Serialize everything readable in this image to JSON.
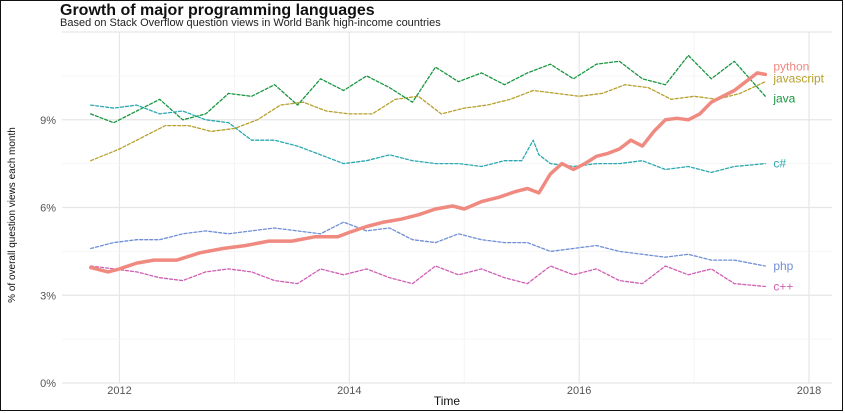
{
  "chart_data": {
    "type": "line",
    "title": "Growth of major programming languages",
    "subtitle": "Based on Stack Overflow question views in World Bank high-income countries",
    "xlabel": "Time",
    "ylabel": "% of overall question views each month",
    "xlim": [
      2011.5,
      2018.2
    ],
    "ylim": [
      0,
      12
    ],
    "x_ticks": [
      {
        "value": 2012,
        "label": "2012"
      },
      {
        "value": 2014,
        "label": "2014"
      },
      {
        "value": 2016,
        "label": "2016"
      },
      {
        "value": 2018,
        "label": "2018"
      }
    ],
    "y_ticks": [
      {
        "value": 0,
        "label": "0%"
      },
      {
        "value": 3,
        "label": "3%"
      },
      {
        "value": 6,
        "label": "6%"
      },
      {
        "value": 9,
        "label": "9%"
      }
    ],
    "grid": true,
    "legend": "direct labels at line ends",
    "series": [
      {
        "name": "python",
        "color": "#f08a80",
        "width": 3.5,
        "dash": "",
        "x": [
          2011.75,
          2011.9,
          2012.0,
          2012.15,
          2012.3,
          2012.5,
          2012.7,
          2012.9,
          2013.1,
          2013.3,
          2013.5,
          2013.7,
          2013.9,
          2014.0,
          2014.15,
          2014.3,
          2014.45,
          2014.6,
          2014.75,
          2014.9,
          2015.0,
          2015.15,
          2015.3,
          2015.45,
          2015.55,
          2015.65,
          2015.75,
          2015.85,
          2015.95,
          2016.05,
          2016.15,
          2016.25,
          2016.35,
          2016.45,
          2016.55,
          2016.65,
          2016.75,
          2016.85,
          2016.95,
          2017.05,
          2017.15,
          2017.25,
          2017.35,
          2017.45,
          2017.55,
          2017.62
        ],
        "y": [
          3.95,
          3.8,
          3.9,
          4.1,
          4.2,
          4.2,
          4.45,
          4.6,
          4.7,
          4.85,
          4.85,
          5.0,
          5.0,
          5.15,
          5.35,
          5.5,
          5.6,
          5.75,
          5.95,
          6.05,
          5.95,
          6.2,
          6.35,
          6.55,
          6.65,
          6.5,
          7.15,
          7.5,
          7.3,
          7.5,
          7.75,
          7.85,
          8.0,
          8.3,
          8.1,
          8.6,
          9.0,
          9.05,
          9.0,
          9.2,
          9.6,
          9.8,
          10.0,
          10.3,
          10.6,
          10.55
        ]
      },
      {
        "name": "javascript",
        "color": "#b7a02e",
        "width": 1.3,
        "dash": "3,2",
        "x": [
          2011.75,
          2012.0,
          2012.2,
          2012.4,
          2012.6,
          2012.8,
          2013.0,
          2013.2,
          2013.4,
          2013.6,
          2013.8,
          2014.0,
          2014.2,
          2014.4,
          2014.6,
          2014.8,
          2015.0,
          2015.2,
          2015.4,
          2015.6,
          2015.8,
          2016.0,
          2016.2,
          2016.4,
          2016.6,
          2016.8,
          2017.0,
          2017.2,
          2017.4,
          2017.62
        ],
        "y": [
          7.6,
          8.0,
          8.4,
          8.8,
          8.8,
          8.6,
          8.7,
          9.0,
          9.5,
          9.6,
          9.3,
          9.2,
          9.2,
          9.7,
          9.8,
          9.2,
          9.4,
          9.5,
          9.7,
          10.0,
          9.9,
          9.8,
          9.9,
          10.2,
          10.1,
          9.7,
          9.8,
          9.7,
          9.9,
          10.3
        ]
      },
      {
        "name": "java",
        "color": "#1a9641",
        "width": 1.3,
        "dash": "3,2",
        "x": [
          2011.75,
          2011.95,
          2012.15,
          2012.35,
          2012.55,
          2012.75,
          2012.95,
          2013.15,
          2013.35,
          2013.55,
          2013.75,
          2013.95,
          2014.15,
          2014.35,
          2014.55,
          2014.75,
          2014.95,
          2015.15,
          2015.35,
          2015.55,
          2015.75,
          2015.95,
          2016.15,
          2016.35,
          2016.55,
          2016.75,
          2016.95,
          2017.15,
          2017.35,
          2017.62
        ],
        "y": [
          9.2,
          8.9,
          9.3,
          9.7,
          9.0,
          9.2,
          9.9,
          9.8,
          10.2,
          9.5,
          10.4,
          10.0,
          10.5,
          10.1,
          9.6,
          10.8,
          10.3,
          10.6,
          10.2,
          10.6,
          10.9,
          10.4,
          10.9,
          11.0,
          10.4,
          10.2,
          11.2,
          10.4,
          11.0,
          9.8
        ]
      },
      {
        "name": "c#",
        "color": "#2aa9b0",
        "width": 1.3,
        "dash": "3,2",
        "x": [
          2011.75,
          2011.95,
          2012.15,
          2012.35,
          2012.55,
          2012.75,
          2012.95,
          2013.15,
          2013.35,
          2013.55,
          2013.75,
          2013.95,
          2014.15,
          2014.35,
          2014.55,
          2014.75,
          2014.95,
          2015.15,
          2015.35,
          2015.5,
          2015.6,
          2015.65,
          2015.75,
          2015.95,
          2016.15,
          2016.35,
          2016.55,
          2016.75,
          2016.95,
          2017.15,
          2017.35,
          2017.62
        ],
        "y": [
          9.5,
          9.4,
          9.5,
          9.2,
          9.3,
          9.0,
          8.9,
          8.3,
          8.3,
          8.1,
          7.8,
          7.5,
          7.6,
          7.8,
          7.6,
          7.5,
          7.5,
          7.4,
          7.6,
          7.6,
          8.3,
          7.8,
          7.5,
          7.4,
          7.5,
          7.5,
          7.6,
          7.3,
          7.4,
          7.2,
          7.4,
          7.5
        ]
      },
      {
        "name": "php",
        "color": "#6f8fd6",
        "width": 1.3,
        "dash": "3,2",
        "x": [
          2011.75,
          2011.95,
          2012.15,
          2012.35,
          2012.55,
          2012.75,
          2012.95,
          2013.15,
          2013.35,
          2013.55,
          2013.75,
          2013.95,
          2014.15,
          2014.35,
          2014.55,
          2014.75,
          2014.95,
          2015.15,
          2015.35,
          2015.55,
          2015.75,
          2015.95,
          2016.15,
          2016.35,
          2016.55,
          2016.75,
          2016.95,
          2017.15,
          2017.35,
          2017.62
        ],
        "y": [
          4.6,
          4.8,
          4.9,
          4.9,
          5.1,
          5.2,
          5.1,
          5.2,
          5.3,
          5.2,
          5.1,
          5.5,
          5.2,
          5.3,
          4.9,
          4.8,
          5.1,
          4.9,
          4.8,
          4.8,
          4.5,
          4.6,
          4.7,
          4.5,
          4.4,
          4.3,
          4.4,
          4.2,
          4.2,
          4.0
        ]
      },
      {
        "name": "c++",
        "color": "#cf5fb4",
        "width": 1.3,
        "dash": "3,2",
        "x": [
          2011.75,
          2011.95,
          2012.15,
          2012.35,
          2012.55,
          2012.75,
          2012.95,
          2013.15,
          2013.35,
          2013.55,
          2013.75,
          2013.95,
          2014.15,
          2014.35,
          2014.55,
          2014.75,
          2014.95,
          2015.15,
          2015.35,
          2015.55,
          2015.75,
          2015.95,
          2016.15,
          2016.35,
          2016.55,
          2016.75,
          2016.95,
          2017.15,
          2017.35,
          2017.62
        ],
        "y": [
          4.0,
          3.9,
          3.8,
          3.6,
          3.5,
          3.8,
          3.9,
          3.8,
          3.5,
          3.4,
          3.9,
          3.7,
          3.9,
          3.6,
          3.4,
          4.0,
          3.7,
          3.9,
          3.6,
          3.4,
          4.0,
          3.7,
          3.9,
          3.5,
          3.4,
          4.0,
          3.7,
          3.9,
          3.4,
          3.3
        ]
      }
    ]
  }
}
